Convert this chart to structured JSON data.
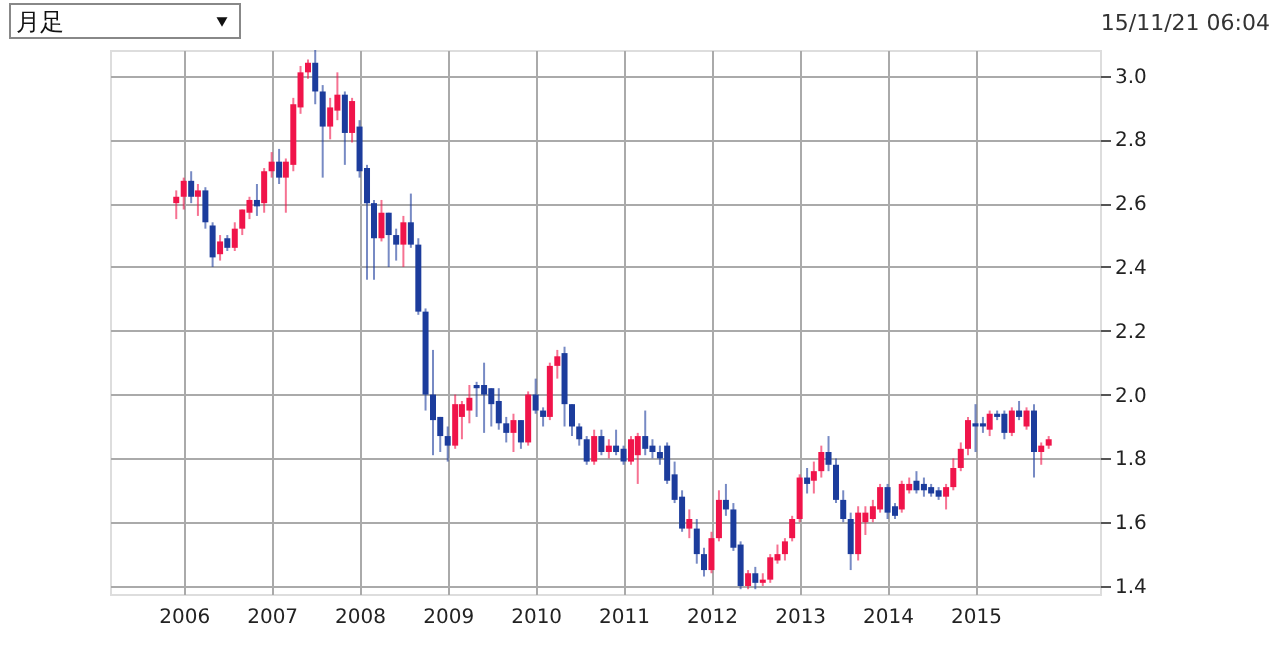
{
  "chart_data": {
    "type": "candlestick",
    "annotations": [
      "月足",
      "15/11/21 06:04"
    ],
    "xlim": [
      "2005-03",
      "2016-06"
    ],
    "xticks": [
      "2006",
      "2007",
      "2008",
      "2009",
      "2010",
      "2011",
      "2012",
      "2013",
      "2014",
      "2015"
    ],
    "ylim": [
      1.375,
      3.08
    ],
    "yticks": [
      {
        "value": 1.4,
        "label": "1.4"
      },
      {
        "value": 1.6,
        "label": "1.6"
      },
      {
        "value": 1.8,
        "label": "1.8"
      },
      {
        "value": 2.0,
        "label": "2.0"
      },
      {
        "value": 2.2,
        "label": "2.2"
      },
      {
        "value": 2.4,
        "label": "2.4"
      },
      {
        "value": 2.6,
        "label": "2.6"
      },
      {
        "value": 2.8,
        "label": "2.8"
      },
      {
        "value": 3.0,
        "label": "3.0"
      }
    ],
    "grid": true,
    "x": [
      "2005-12",
      "2006-01",
      "2006-02",
      "2006-03",
      "2006-04",
      "2006-05",
      "2006-06",
      "2006-07",
      "2006-08",
      "2006-09",
      "2006-10",
      "2006-11",
      "2006-12",
      "2007-01",
      "2007-02",
      "2007-03",
      "2007-04",
      "2007-05",
      "2007-06",
      "2007-07",
      "2007-08",
      "2007-09",
      "2007-10",
      "2007-11",
      "2007-12",
      "2008-01",
      "2008-02",
      "2008-03",
      "2008-04",
      "2008-05",
      "2008-06",
      "2008-07",
      "2008-08",
      "2008-09",
      "2008-10",
      "2008-11",
      "2008-12",
      "2009-01",
      "2009-02",
      "2009-03",
      "2009-04",
      "2009-05",
      "2009-06",
      "2009-07",
      "2009-08",
      "2009-09",
      "2009-10",
      "2009-11",
      "2009-12",
      "2010-01",
      "2010-02",
      "2010-03",
      "2010-04",
      "2010-05",
      "2010-06",
      "2010-07",
      "2010-08",
      "2010-09",
      "2010-10",
      "2010-11",
      "2010-12",
      "2011-01",
      "2011-02",
      "2011-03",
      "2011-04",
      "2011-05",
      "2011-06",
      "2011-07",
      "2011-08",
      "2011-09",
      "2011-10",
      "2011-11",
      "2011-12",
      "2012-01",
      "2012-02",
      "2012-03",
      "2012-04",
      "2012-05",
      "2012-06",
      "2012-07",
      "2012-08",
      "2012-09",
      "2012-10",
      "2012-11",
      "2012-12",
      "2013-01",
      "2013-02",
      "2013-03",
      "2013-04",
      "2013-05",
      "2013-06",
      "2013-07",
      "2013-08",
      "2013-09",
      "2013-10",
      "2013-11",
      "2013-12",
      "2014-01",
      "2014-02",
      "2014-03",
      "2014-04",
      "2014-05",
      "2014-06",
      "2014-07",
      "2014-08",
      "2014-09",
      "2014-10",
      "2014-11",
      "2014-12",
      "2015-01",
      "2015-02",
      "2015-03",
      "2015-04",
      "2015-05",
      "2015-06",
      "2015-07",
      "2015-08",
      "2015-09",
      "2015-10",
      "2015-11"
    ],
    "ohlc": [
      [
        2.6,
        2.64,
        2.55,
        2.62
      ],
      [
        2.62,
        2.68,
        2.58,
        2.67
      ],
      [
        2.67,
        2.7,
        2.6,
        2.62
      ],
      [
        2.62,
        2.66,
        2.56,
        2.64
      ],
      [
        2.64,
        2.65,
        2.52,
        2.54
      ],
      [
        2.53,
        2.54,
        2.4,
        2.43
      ],
      [
        2.44,
        2.5,
        2.42,
        2.48
      ],
      [
        2.49,
        2.5,
        2.45,
        2.46
      ],
      [
        2.46,
        2.54,
        2.45,
        2.52
      ],
      [
        2.52,
        2.58,
        2.5,
        2.58
      ],
      [
        2.57,
        2.62,
        2.55,
        2.61
      ],
      [
        2.61,
        2.66,
        2.56,
        2.59
      ],
      [
        2.6,
        2.71,
        2.57,
        2.7
      ],
      [
        2.7,
        2.76,
        2.68,
        2.73
      ],
      [
        2.73,
        2.77,
        2.66,
        2.68
      ],
      [
        2.68,
        2.74,
        2.57,
        2.73
      ],
      [
        2.72,
        2.93,
        2.7,
        2.91
      ],
      [
        2.9,
        3.03,
        2.88,
        3.01
      ],
      [
        3.01,
        3.05,
        2.99,
        3.04
      ],
      [
        3.04,
        3.08,
        2.91,
        2.95
      ],
      [
        2.95,
        2.97,
        2.68,
        2.84
      ],
      [
        2.84,
        2.93,
        2.8,
        2.9
      ],
      [
        2.89,
        3.01,
        2.86,
        2.94
      ],
      [
        2.94,
        2.95,
        2.72,
        2.82
      ],
      [
        2.82,
        2.93,
        2.79,
        2.92
      ],
      [
        2.84,
        2.86,
        2.68,
        2.7
      ],
      [
        2.71,
        2.72,
        2.36,
        2.6
      ],
      [
        2.6,
        2.61,
        2.36,
        2.49
      ],
      [
        2.49,
        2.61,
        2.48,
        2.57
      ],
      [
        2.57,
        2.57,
        2.4,
        2.5
      ],
      [
        2.5,
        2.52,
        2.42,
        2.47
      ],
      [
        2.47,
        2.56,
        2.4,
        2.54
      ],
      [
        2.54,
        2.63,
        2.46,
        2.47
      ],
      [
        2.47,
        2.49,
        2.25,
        2.26
      ],
      [
        2.26,
        2.27,
        1.95,
        2.0
      ],
      [
        2.0,
        2.14,
        1.81,
        1.92
      ],
      [
        1.93,
        1.93,
        1.82,
        1.87
      ],
      [
        1.87,
        1.9,
        1.79,
        1.84
      ],
      [
        1.84,
        2.0,
        1.83,
        1.97
      ],
      [
        1.93,
        1.98,
        1.86,
        1.97
      ],
      [
        1.95,
        2.03,
        1.91,
        1.99
      ],
      [
        2.03,
        2.04,
        1.93,
        2.02
      ],
      [
        2.03,
        2.1,
        1.88,
        2.0
      ],
      [
        2.02,
        2.02,
        1.9,
        1.97
      ],
      [
        1.98,
        2.02,
        1.89,
        1.91
      ],
      [
        1.91,
        1.93,
        1.85,
        1.88
      ],
      [
        1.88,
        1.94,
        1.82,
        1.92
      ],
      [
        1.92,
        1.92,
        1.83,
        1.85
      ],
      [
        1.85,
        2.01,
        1.84,
        2.0
      ],
      [
        2.0,
        2.05,
        1.94,
        1.95
      ],
      [
        1.95,
        1.96,
        1.9,
        1.93
      ],
      [
        1.93,
        2.1,
        1.92,
        2.09
      ],
      [
        2.09,
        2.14,
        2.05,
        2.12
      ],
      [
        2.13,
        2.15,
        1.9,
        1.97
      ],
      [
        1.97,
        1.97,
        1.87,
        1.9
      ],
      [
        1.9,
        1.91,
        1.84,
        1.86
      ],
      [
        1.86,
        1.87,
        1.78,
        1.79
      ],
      [
        1.79,
        1.89,
        1.78,
        1.87
      ],
      [
        1.87,
        1.89,
        1.81,
        1.82
      ],
      [
        1.82,
        1.86,
        1.8,
        1.84
      ],
      [
        1.84,
        1.89,
        1.81,
        1.82
      ],
      [
        1.83,
        1.84,
        1.78,
        1.79
      ],
      [
        1.79,
        1.87,
        1.78,
        1.86
      ],
      [
        1.81,
        1.88,
        1.72,
        1.87
      ],
      [
        1.87,
        1.95,
        1.81,
        1.83
      ],
      [
        1.84,
        1.86,
        1.8,
        1.82
      ],
      [
        1.82,
        1.84,
        1.78,
        1.8
      ],
      [
        1.84,
        1.85,
        1.72,
        1.73
      ],
      [
        1.75,
        1.79,
        1.66,
        1.67
      ],
      [
        1.68,
        1.7,
        1.57,
        1.58
      ],
      [
        1.58,
        1.64,
        1.55,
        1.61
      ],
      [
        1.58,
        1.61,
        1.47,
        1.5
      ],
      [
        1.5,
        1.52,
        1.43,
        1.45
      ],
      [
        1.45,
        1.57,
        1.44,
        1.55
      ],
      [
        1.55,
        1.7,
        1.54,
        1.67
      ],
      [
        1.67,
        1.72,
        1.62,
        1.64
      ],
      [
        1.64,
        1.66,
        1.51,
        1.52
      ],
      [
        1.53,
        1.54,
        1.39,
        1.4
      ],
      [
        1.4,
        1.45,
        1.39,
        1.44
      ],
      [
        1.44,
        1.46,
        1.39,
        1.41
      ],
      [
        1.41,
        1.44,
        1.4,
        1.42
      ],
      [
        1.42,
        1.5,
        1.41,
        1.49
      ],
      [
        1.48,
        1.53,
        1.47,
        1.5
      ],
      [
        1.5,
        1.55,
        1.48,
        1.54
      ],
      [
        1.55,
        1.62,
        1.54,
        1.61
      ],
      [
        1.61,
        1.75,
        1.6,
        1.74
      ],
      [
        1.74,
        1.77,
        1.69,
        1.72
      ],
      [
        1.73,
        1.79,
        1.69,
        1.76
      ],
      [
        1.76,
        1.84,
        1.74,
        1.82
      ],
      [
        1.82,
        1.87,
        1.76,
        1.78
      ],
      [
        1.78,
        1.8,
        1.66,
        1.67
      ],
      [
        1.67,
        1.7,
        1.6,
        1.61
      ],
      [
        1.61,
        1.63,
        1.45,
        1.5
      ],
      [
        1.5,
        1.65,
        1.48,
        1.63
      ],
      [
        1.6,
        1.65,
        1.56,
        1.63
      ],
      [
        1.61,
        1.67,
        1.6,
        1.65
      ],
      [
        1.64,
        1.72,
        1.63,
        1.71
      ],
      [
        1.71,
        1.72,
        1.61,
        1.63
      ],
      [
        1.65,
        1.66,
        1.61,
        1.62
      ],
      [
        1.64,
        1.73,
        1.63,
        1.72
      ],
      [
        1.7,
        1.74,
        1.69,
        1.72
      ],
      [
        1.73,
        1.76,
        1.69,
        1.7
      ],
      [
        1.72,
        1.74,
        1.68,
        1.7
      ],
      [
        1.71,
        1.72,
        1.68,
        1.69
      ],
      [
        1.7,
        1.71,
        1.67,
        1.68
      ],
      [
        1.68,
        1.72,
        1.64,
        1.71
      ],
      [
        1.71,
        1.8,
        1.7,
        1.77
      ],
      [
        1.77,
        1.85,
        1.76,
        1.83
      ],
      [
        1.83,
        1.93,
        1.81,
        1.92
      ],
      [
        1.91,
        1.97,
        1.82,
        1.9
      ],
      [
        1.91,
        1.93,
        1.88,
        1.9
      ],
      [
        1.89,
        1.95,
        1.87,
        1.94
      ],
      [
        1.94,
        1.95,
        1.92,
        1.93
      ],
      [
        1.94,
        1.95,
        1.86,
        1.88
      ],
      [
        1.88,
        1.96,
        1.87,
        1.95
      ],
      [
        1.95,
        1.98,
        1.92,
        1.93
      ],
      [
        1.9,
        1.96,
        1.89,
        1.95
      ],
      [
        1.95,
        1.97,
        1.74,
        1.82
      ],
      [
        1.82,
        1.85,
        1.78,
        1.84
      ],
      [
        1.84,
        1.87,
        1.83,
        1.86
      ]
    ],
    "colors": [
      "#f0144a",
      "#f0144a",
      "#1c3c9c",
      "#f0144a",
      "#1c3c9c",
      "#1c3c9c",
      "#f0144a",
      "#1c3c9c",
      "#f0144a",
      "#f0144a",
      "#f0144a",
      "#1c3c9c",
      "#f0144a",
      "#f0144a",
      "#1c3c9c",
      "#f0144a",
      "#f0144a",
      "#f0144a",
      "#f0144a",
      "#1c3c9c",
      "#1c3c9c",
      "#f0144a",
      "#f0144a",
      "#1c3c9c",
      "#f0144a",
      "#1c3c9c",
      "#1c3c9c",
      "#1c3c9c",
      "#f0144a",
      "#1c3c9c",
      "#1c3c9c",
      "#f0144a",
      "#1c3c9c",
      "#1c3c9c",
      "#1c3c9c",
      "#1c3c9c",
      "#1c3c9c",
      "#1c3c9c",
      "#f0144a",
      "#f0144a",
      "#f0144a",
      "#1c3c9c",
      "#1c3c9c",
      "#1c3c9c",
      "#1c3c9c",
      "#1c3c9c",
      "#f0144a",
      "#1c3c9c",
      "#f0144a",
      "#1c3c9c",
      "#1c3c9c",
      "#f0144a",
      "#f0144a",
      "#1c3c9c",
      "#1c3c9c",
      "#1c3c9c",
      "#1c3c9c",
      "#f0144a",
      "#1c3c9c",
      "#f0144a",
      "#1c3c9c",
      "#1c3c9c",
      "#f0144a",
      "#f0144a",
      "#1c3c9c",
      "#1c3c9c",
      "#1c3c9c",
      "#1c3c9c",
      "#1c3c9c",
      "#1c3c9c",
      "#f0144a",
      "#1c3c9c",
      "#1c3c9c",
      "#f0144a",
      "#f0144a",
      "#1c3c9c",
      "#1c3c9c",
      "#1c3c9c",
      "#f0144a",
      "#1c3c9c",
      "#f0144a",
      "#f0144a",
      "#f0144a",
      "#f0144a",
      "#f0144a",
      "#f0144a",
      "#1c3c9c",
      "#f0144a",
      "#f0144a",
      "#1c3c9c",
      "#1c3c9c",
      "#1c3c9c",
      "#1c3c9c",
      "#f0144a",
      "#f0144a",
      "#f0144a",
      "#f0144a",
      "#1c3c9c",
      "#1c3c9c",
      "#f0144a",
      "#f0144a",
      "#1c3c9c",
      "#1c3c9c",
      "#1c3c9c",
      "#1c3c9c",
      "#f0144a",
      "#f0144a",
      "#f0144a",
      "#f0144a",
      "#1c3c9c",
      "#1c3c9c",
      "#f0144a",
      "#1c3c9c",
      "#1c3c9c",
      "#f0144a",
      "#1c3c9c",
      "#f0144a",
      "#1c3c9c",
      "#f0144a",
      "#f0144a"
    ]
  }
}
